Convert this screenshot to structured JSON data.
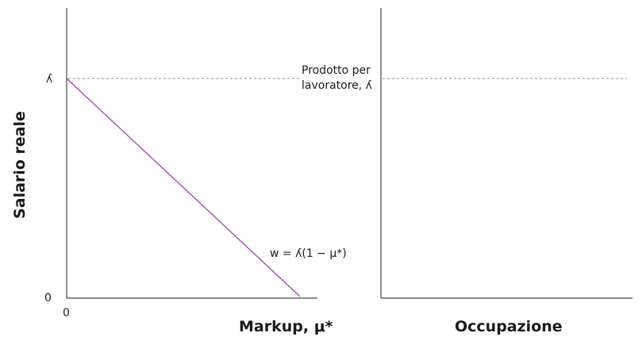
{
  "chart_data": [
    {
      "type": "line",
      "ylabel": "Salario reale",
      "xlabel": "Markup, μ*",
      "x_ticks": [
        "0"
      ],
      "y_ticks": [
        "0",
        "ʎ"
      ],
      "reference_line": {
        "label_line1": "Prodotto per",
        "label_line2": "lavoratore, ʎ"
      },
      "series": [
        {
          "name": "w = ʎ(1 − μ*)",
          "color": "#a040b0",
          "x": [
            0,
            1
          ],
          "y": [
            1,
            0
          ]
        }
      ]
    },
    {
      "type": "line",
      "xlabel": "Occupazione",
      "reference_line": {}
    }
  ]
}
